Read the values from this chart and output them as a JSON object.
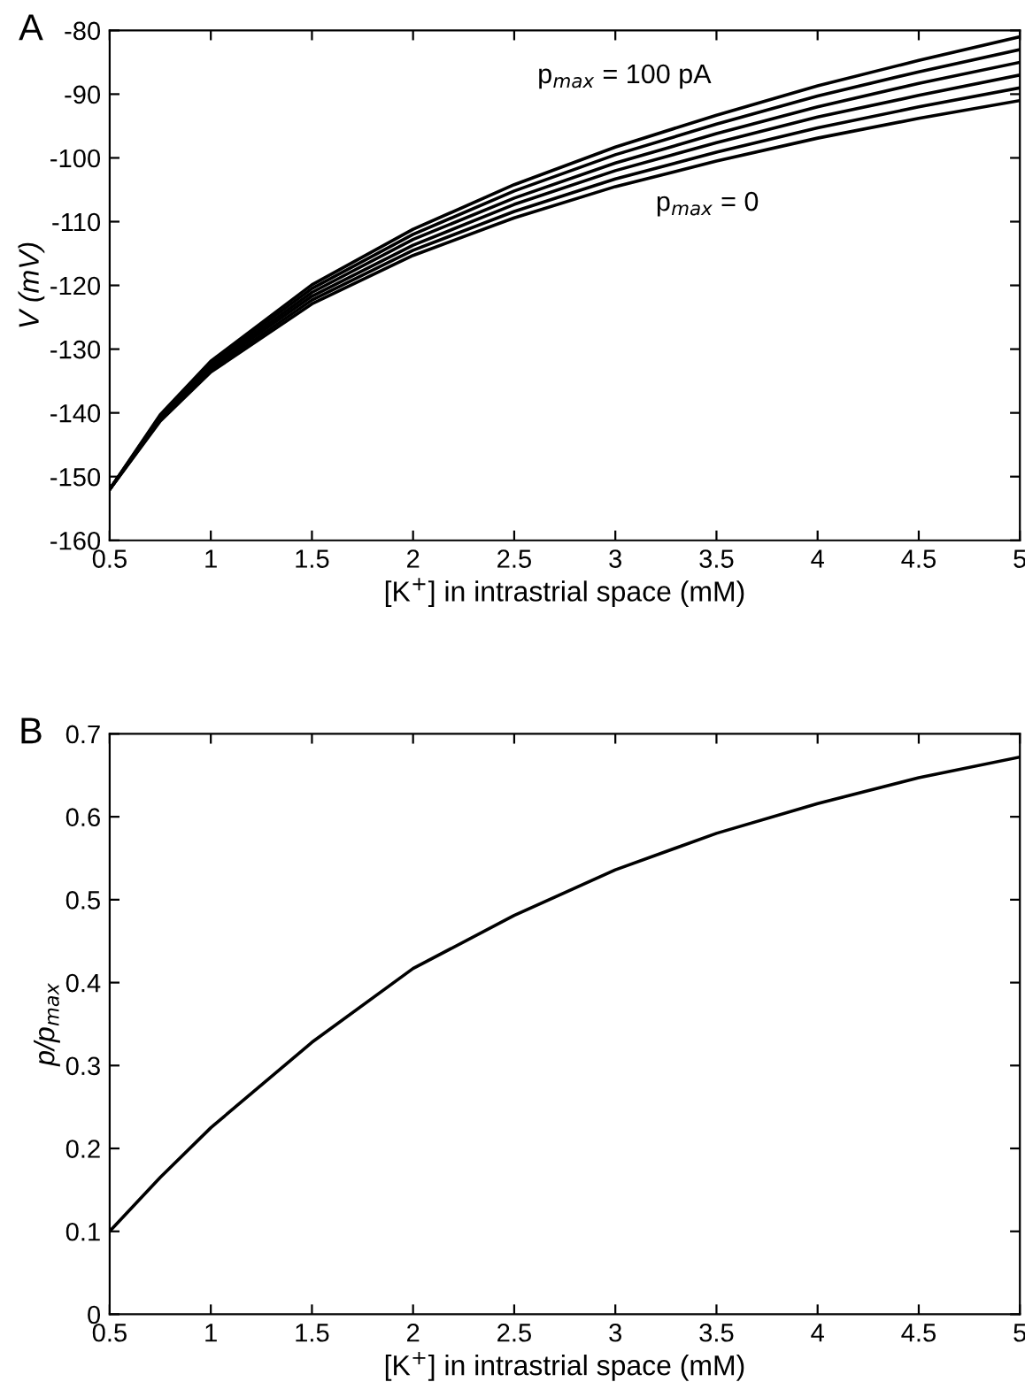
{
  "chart_data": [
    {
      "type": "line",
      "title": "A",
      "xlabel": "[K$^{+}$] in intrastrial space (mM)",
      "ylabel": "V (mV)",
      "x": [
        0.5,
        0.75,
        1,
        1.5,
        2,
        2.5,
        3,
        3.5,
        4,
        4.5,
        5
      ],
      "series": [
        {
          "color": "#000000",
          "values": [
            -152,
            -141.3,
            -133.6,
            -122.9,
            -115.3,
            -109.4,
            -104.5,
            -100.5,
            -96.9,
            -93.8,
            -91
          ]
        },
        {
          "color": "#000000",
          "values": [
            -152,
            -141.1,
            -133.3,
            -122.3,
            -114.5,
            -108.4,
            -103.3,
            -99.1,
            -95.3,
            -92.0,
            -89
          ]
        },
        {
          "color": "#000000",
          "values": [
            -152,
            -140.9,
            -132.9,
            -121.7,
            -113.7,
            -107.3,
            -102.0,
            -97.6,
            -93.6,
            -90.2,
            -87
          ]
        },
        {
          "color": "#000000",
          "values": [
            -152,
            -140.7,
            -132.6,
            -121.1,
            -112.8,
            -106.3,
            -100.8,
            -96.2,
            -92.0,
            -88.3,
            -85
          ]
        },
        {
          "color": "#000000",
          "values": [
            -152,
            -140.5,
            -132.2,
            -120.5,
            -112.0,
            -105.2,
            -99.5,
            -94.7,
            -90.3,
            -86.5,
            -83
          ]
        },
        {
          "color": "#000000",
          "values": [
            -152,
            -140.3,
            -131.9,
            -119.9,
            -111.2,
            -104.2,
            -98.3,
            -93.3,
            -88.7,
            -84.7,
            -81
          ]
        }
      ],
      "annotations": [
        "p$_{max}$ = 100 pA",
        "p$_{max}$ = 0"
      ],
      "xlim": [
        0.5,
        5
      ],
      "xticks": [
        0.5,
        1,
        1.5,
        2,
        2.5,
        3,
        3.5,
        4,
        4.5,
        5
      ],
      "ylim": [
        -160,
        -80
      ],
      "yticks": [
        -160,
        -150,
        -140,
        -130,
        -120,
        -110,
        -100,
        -90,
        -80
      ],
      "grid": false,
      "legend": false
    },
    {
      "type": "line",
      "title": "B",
      "xlabel": "[K$^{+}$] in intrastrial space (mM)",
      "ylabel": "p/p$_{max}$",
      "x": [
        0.5,
        0.75,
        1,
        1.5,
        2,
        2.5,
        3,
        3.5,
        4,
        4.5,
        5
      ],
      "series": [
        {
          "color": "#000000",
          "values": [
            0.1,
            0.165,
            0.225,
            0.328,
            0.417,
            0.481,
            0.536,
            0.58,
            0.616,
            0.647,
            0.672
          ]
        }
      ],
      "xlim": [
        0.5,
        5
      ],
      "xticks": [
        0.5,
        1,
        1.5,
        2,
        2.5,
        3,
        3.5,
        4,
        4.5,
        5
      ],
      "ylim": [
        0,
        0.7
      ],
      "yticks": [
        0,
        0.1,
        0.2,
        0.3,
        0.4,
        0.5,
        0.6,
        0.7
      ],
      "grid": false,
      "legend": false
    }
  ]
}
